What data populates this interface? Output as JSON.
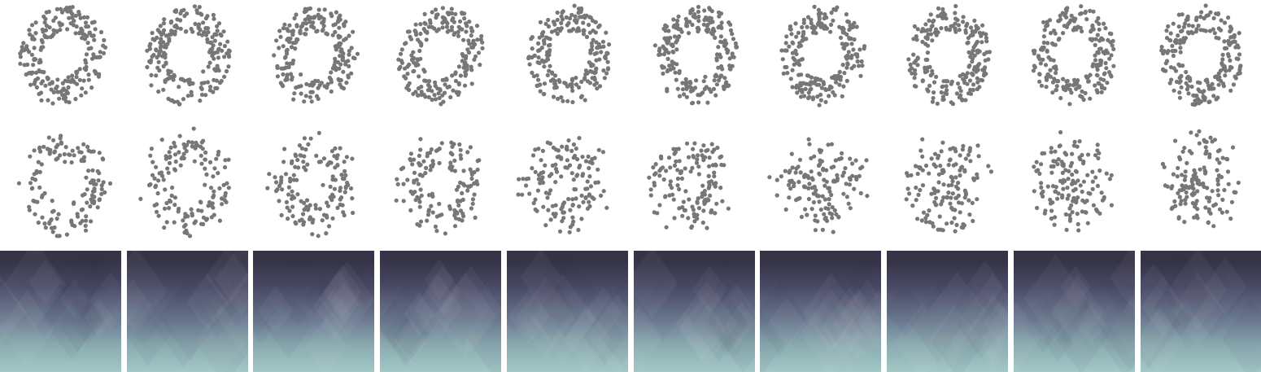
{
  "figure": {
    "point_color": "#777777",
    "background": "#ffffff",
    "rows": [
      {
        "kind": "ring-scatter-clean",
        "panel_count": 10
      },
      {
        "kind": "ring-scatter-noisy",
        "panel_count": 10
      },
      {
        "kind": "gradient-tile",
        "panel_count": 10
      }
    ],
    "gradient_colors": {
      "top": "#363548",
      "upper": "#4b4a67",
      "mid": "#6d7d93",
      "lower": "#8aaab0",
      "bottom": "#a3c8c6"
    }
  }
}
